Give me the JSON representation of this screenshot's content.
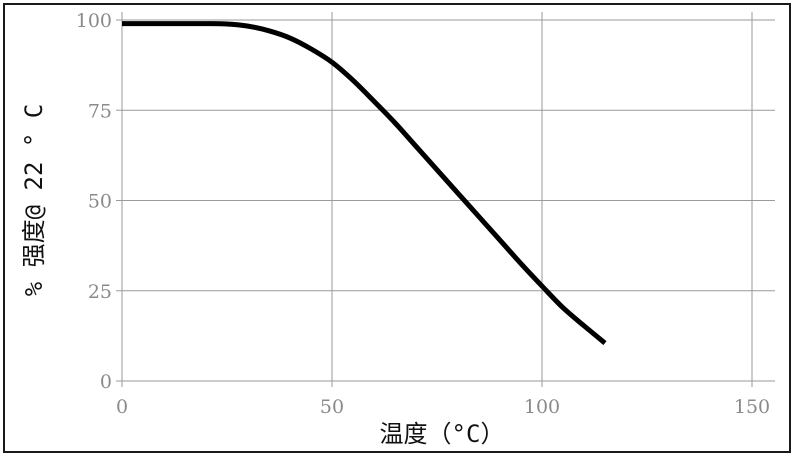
{
  "chart_data": {
    "type": "line",
    "title": "",
    "xlabel": "温度（°C）",
    "ylabel": "% 强度@ 22 ° C",
    "xlim": [
      0,
      150
    ],
    "ylim": [
      0,
      100
    ],
    "x_ticks": [
      "0",
      "50",
      "100",
      "150"
    ],
    "y_ticks": [
      "0",
      "25",
      "50",
      "75",
      "100"
    ],
    "grid": true,
    "legend": "none",
    "line_color": "#000000",
    "series": [
      {
        "x": [
          0,
          10,
          20,
          25,
          30,
          35,
          40,
          45,
          50,
          55,
          60,
          65,
          70,
          75,
          80,
          85,
          90,
          95,
          100,
          105,
          110,
          115
        ],
        "y": [
          99,
          99,
          99,
          98.9,
          98.3,
          97,
          95,
          92,
          88.3,
          83.3,
          77.5,
          71.5,
          65,
          58.5,
          52,
          45.5,
          39,
          32.5,
          26.3,
          20.3,
          15.3,
          10.5
        ]
      }
    ]
  }
}
